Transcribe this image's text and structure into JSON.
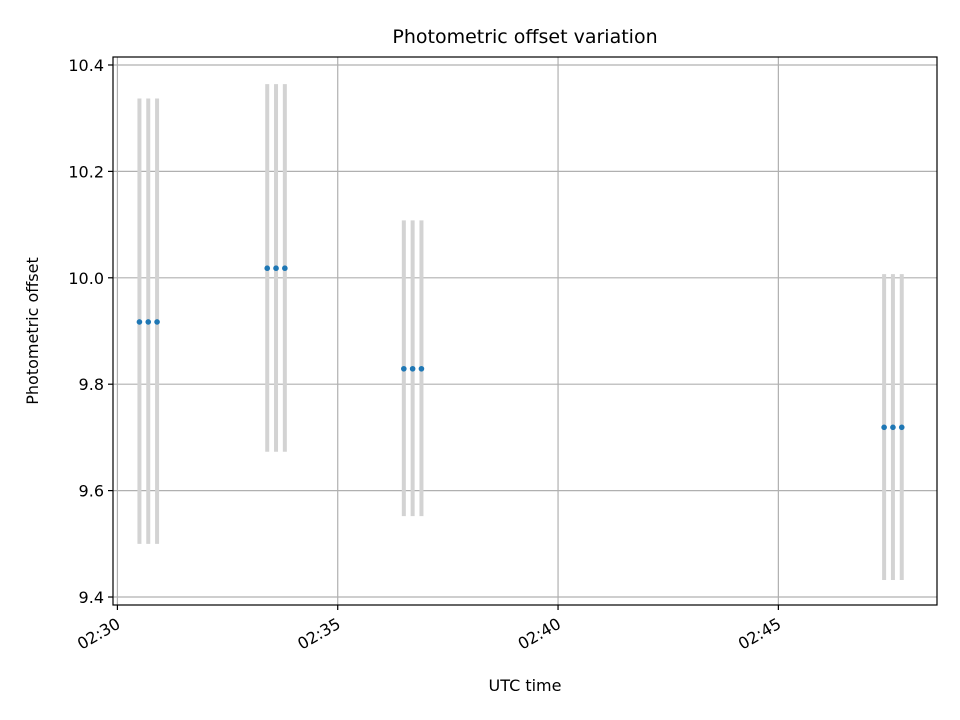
{
  "chart_data": {
    "type": "scatter",
    "title": "Photometric offset variation",
    "xlabel": "UTC time",
    "ylabel": "Photometric offset",
    "x_tick_labels": [
      "02:30",
      "02:35",
      "02:40",
      "02:45"
    ],
    "x_ticks_minutes": [
      30,
      35,
      40,
      45
    ],
    "y_tick_labels": [
      "9.4",
      "9.6",
      "9.8",
      "10.0",
      "10.2",
      "10.4"
    ],
    "y_ticks": [
      9.4,
      9.6,
      9.8,
      10.0,
      10.2,
      10.4
    ],
    "xlim_minutes": [
      29.9,
      48.6
    ],
    "ylim": [
      9.385,
      10.415
    ],
    "grid": true,
    "marker_color": "#1f77b4",
    "errorbar_color": "#d3d3d3",
    "series": [
      {
        "points": [
          {
            "t": "02:30:30",
            "y": 9.917,
            "lo": 9.5,
            "hi": 10.337
          },
          {
            "t": "02:30:42",
            "y": 9.917,
            "lo": 9.5,
            "hi": 10.337
          },
          {
            "t": "02:30:54",
            "y": 9.917,
            "lo": 9.5,
            "hi": 10.337
          },
          {
            "t": "02:33:24",
            "y": 10.018,
            "lo": 9.673,
            "hi": 10.364
          },
          {
            "t": "02:33:36",
            "y": 10.018,
            "lo": 9.673,
            "hi": 10.364
          },
          {
            "t": "02:33:48",
            "y": 10.018,
            "lo": 9.673,
            "hi": 10.364
          },
          {
            "t": "02:36:30",
            "y": 9.829,
            "lo": 9.552,
            "hi": 10.108
          },
          {
            "t": "02:36:42",
            "y": 9.829,
            "lo": 9.552,
            "hi": 10.108
          },
          {
            "t": "02:36:54",
            "y": 9.829,
            "lo": 9.552,
            "hi": 10.108
          },
          {
            "t": "02:47:24",
            "y": 9.719,
            "lo": 9.432,
            "hi": 10.007
          },
          {
            "t": "02:47:36",
            "y": 9.719,
            "lo": 9.432,
            "hi": 10.007
          },
          {
            "t": "02:47:48",
            "y": 9.719,
            "lo": 9.432,
            "hi": 10.007
          }
        ]
      }
    ]
  }
}
